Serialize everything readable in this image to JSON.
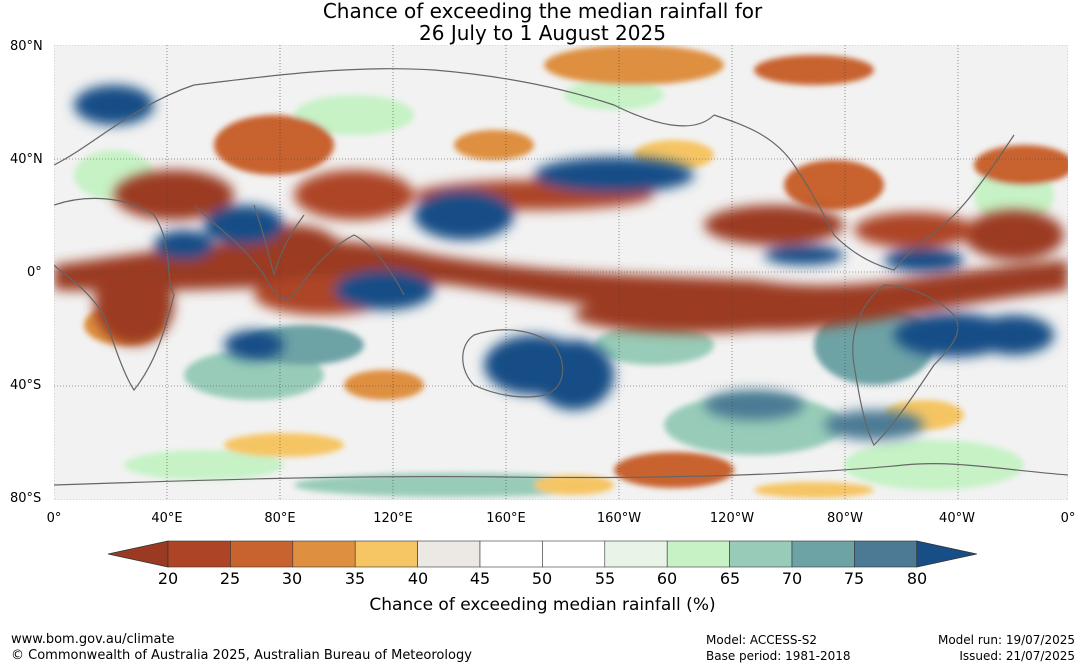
{
  "title": {
    "line1": "Chance of exceeding the median rainfall for",
    "line2": "26 July to 1 August 2025"
  },
  "map": {
    "lat_labels": [
      "80°N",
      "40°N",
      "0°",
      "40°S",
      "80°S"
    ],
    "lon_labels": [
      "0°",
      "40°E",
      "80°E",
      "120°E",
      "160°E",
      "160°W",
      "120°W",
      "80°W",
      "40°W",
      "0°"
    ]
  },
  "colorbar": {
    "label": "Chance of exceeding median rainfall (%)",
    "ticks": [
      "20",
      "25",
      "30",
      "35",
      "40",
      "45",
      "50",
      "55",
      "60",
      "65",
      "70",
      "75",
      "80"
    ],
    "colors": [
      "#9b3a22",
      "#ad4425",
      "#c8622f",
      "#de8f40",
      "#f6c564",
      "#ece8e4",
      "#ffffff",
      "#ffffff",
      "#e7f4e7",
      "#c6f2c6",
      "#98ccb8",
      "#6ea3a6",
      "#4c7a94",
      "#174e86"
    ]
  },
  "footer": {
    "url": "www.bom.gov.au/climate",
    "copyright": "© Commonwealth of Australia 2025, Australian Bureau of Meteorology",
    "model": "Model: ACCESS-S2",
    "base_period": "Base period: 1981-2018",
    "model_run": "Model run: 19/07/2025",
    "issued": "Issued: 21/07/2025"
  }
}
